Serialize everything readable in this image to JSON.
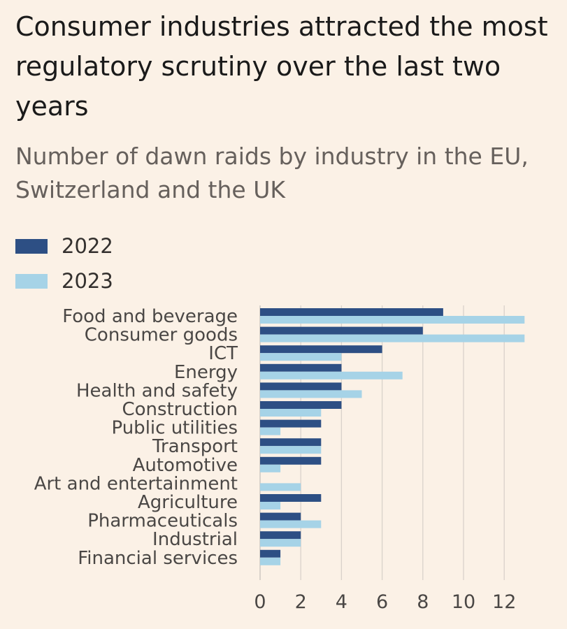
{
  "colors": {
    "y2022": "#2d4f84",
    "y2023": "#a6d3e7",
    "grid": "#d9d2ca",
    "text": "#4a4745"
  },
  "legend": [
    {
      "label": "2022",
      "color": "#2d4f84"
    },
    {
      "label": "2023",
      "color": "#a6d3e7"
    }
  ],
  "chart_data": {
    "type": "bar",
    "orientation": "horizontal",
    "title": "Consumer industries attracted the most regulatory scrutiny over the last two years",
    "subtitle": "Number of dawn raids by industry in the EU, Switzerland and the UK",
    "xlabel": "",
    "ylabel": "",
    "xlim": [
      0,
      13
    ],
    "xticks": [
      0,
      2,
      4,
      6,
      8,
      10,
      12
    ],
    "grid": true,
    "legend_position": "top-left",
    "categories": [
      "Food and beverage",
      "Consumer goods",
      "ICT",
      "Energy",
      "Health and safety",
      "Construction",
      "Public utilities",
      "Transport",
      "Automotive",
      "Art and entertainment",
      "Agriculture",
      "Pharmaceuticals",
      "Industrial",
      "Financial services"
    ],
    "series": [
      {
        "name": "2022",
        "values": [
          9,
          8,
          6,
          4,
          4,
          4,
          3,
          3,
          3,
          0,
          3,
          2,
          2,
          1
        ]
      },
      {
        "name": "2023",
        "values": [
          13,
          13,
          4,
          7,
          5,
          3,
          1,
          3,
          1,
          2,
          1,
          3,
          2,
          1
        ]
      }
    ]
  }
}
